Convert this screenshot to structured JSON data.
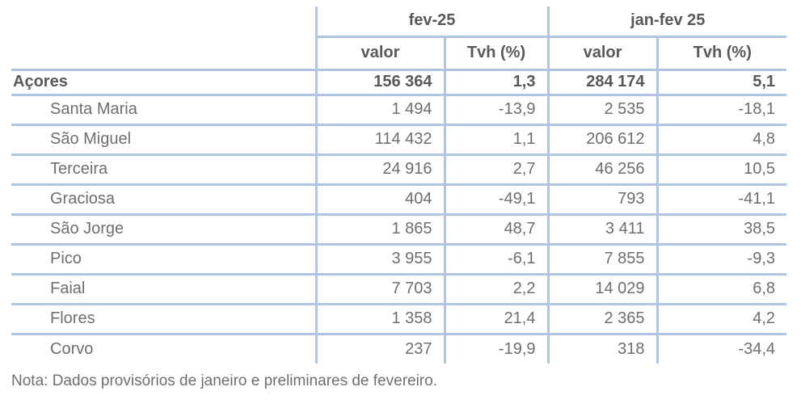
{
  "colors": {
    "border-color": "#b0c5e2",
    "header-text": "#58595b",
    "data-text": "#6d6e70"
  },
  "table": {
    "col_groups": [
      {
        "label": "fev-25"
      },
      {
        "label": "jan-fev 25"
      }
    ],
    "sub_headers": [
      "valor",
      "Tvh (%)",
      "valor",
      "Tvh (%)"
    ],
    "total_row": {
      "name": "Açores",
      "values": [
        "156 364",
        "1,3",
        "284 174",
        "5,1"
      ]
    },
    "rows": [
      {
        "name": "Santa Maria",
        "values": [
          "1 494",
          "-13,9",
          "2 535",
          "-18,1"
        ]
      },
      {
        "name": "São Miguel",
        "values": [
          "114 432",
          "1,1",
          "206 612",
          "4,8"
        ]
      },
      {
        "name": "Terceira",
        "values": [
          "24 916",
          "2,7",
          "46 256",
          "10,5"
        ]
      },
      {
        "name": "Graciosa",
        "values": [
          "404",
          "-49,1",
          "793",
          "-41,1"
        ]
      },
      {
        "name": "São Jorge",
        "values": [
          "1 865",
          "48,7",
          "3 411",
          "38,5"
        ]
      },
      {
        "name": "Pico",
        "values": [
          "3 955",
          "-6,1",
          "7 855",
          "-9,3"
        ]
      },
      {
        "name": "Faial",
        "values": [
          "7 703",
          "2,2",
          "14 029",
          "6,8"
        ]
      },
      {
        "name": "Flores",
        "values": [
          "1 358",
          "21,4",
          "2 365",
          "4,2"
        ]
      },
      {
        "name": "Corvo",
        "values": [
          "237",
          "-19,9",
          "318",
          "-34,4"
        ]
      }
    ]
  },
  "note": "Nota: Dados provisórios de janeiro e preliminares de fevereiro.",
  "chart_data": {
    "type": "table",
    "title": "",
    "column_groups": [
      "fev-25",
      "jan-fev 25"
    ],
    "columns": [
      "valor (fev-25)",
      "Tvh % (fev-25)",
      "valor (jan-fev 25)",
      "Tvh % (jan-fev 25)"
    ],
    "row_labels": [
      "Açores",
      "Santa Maria",
      "São Miguel",
      "Terceira",
      "Graciosa",
      "São Jorge",
      "Pico",
      "Faial",
      "Flores",
      "Corvo"
    ],
    "values": [
      [
        156364,
        1.3,
        284174,
        5.1
      ],
      [
        1494,
        -13.9,
        2535,
        -18.1
      ],
      [
        114432,
        1.1,
        206612,
        4.8
      ],
      [
        24916,
        2.7,
        46256,
        10.5
      ],
      [
        404,
        -49.1,
        793,
        -41.1
      ],
      [
        1865,
        48.7,
        3411,
        38.5
      ],
      [
        3955,
        -6.1,
        7855,
        -9.3
      ],
      [
        7703,
        2.2,
        14029,
        6.8
      ],
      [
        1358,
        21.4,
        2365,
        4.2
      ],
      [
        237,
        -19.9,
        318,
        -34.4
      ]
    ]
  }
}
